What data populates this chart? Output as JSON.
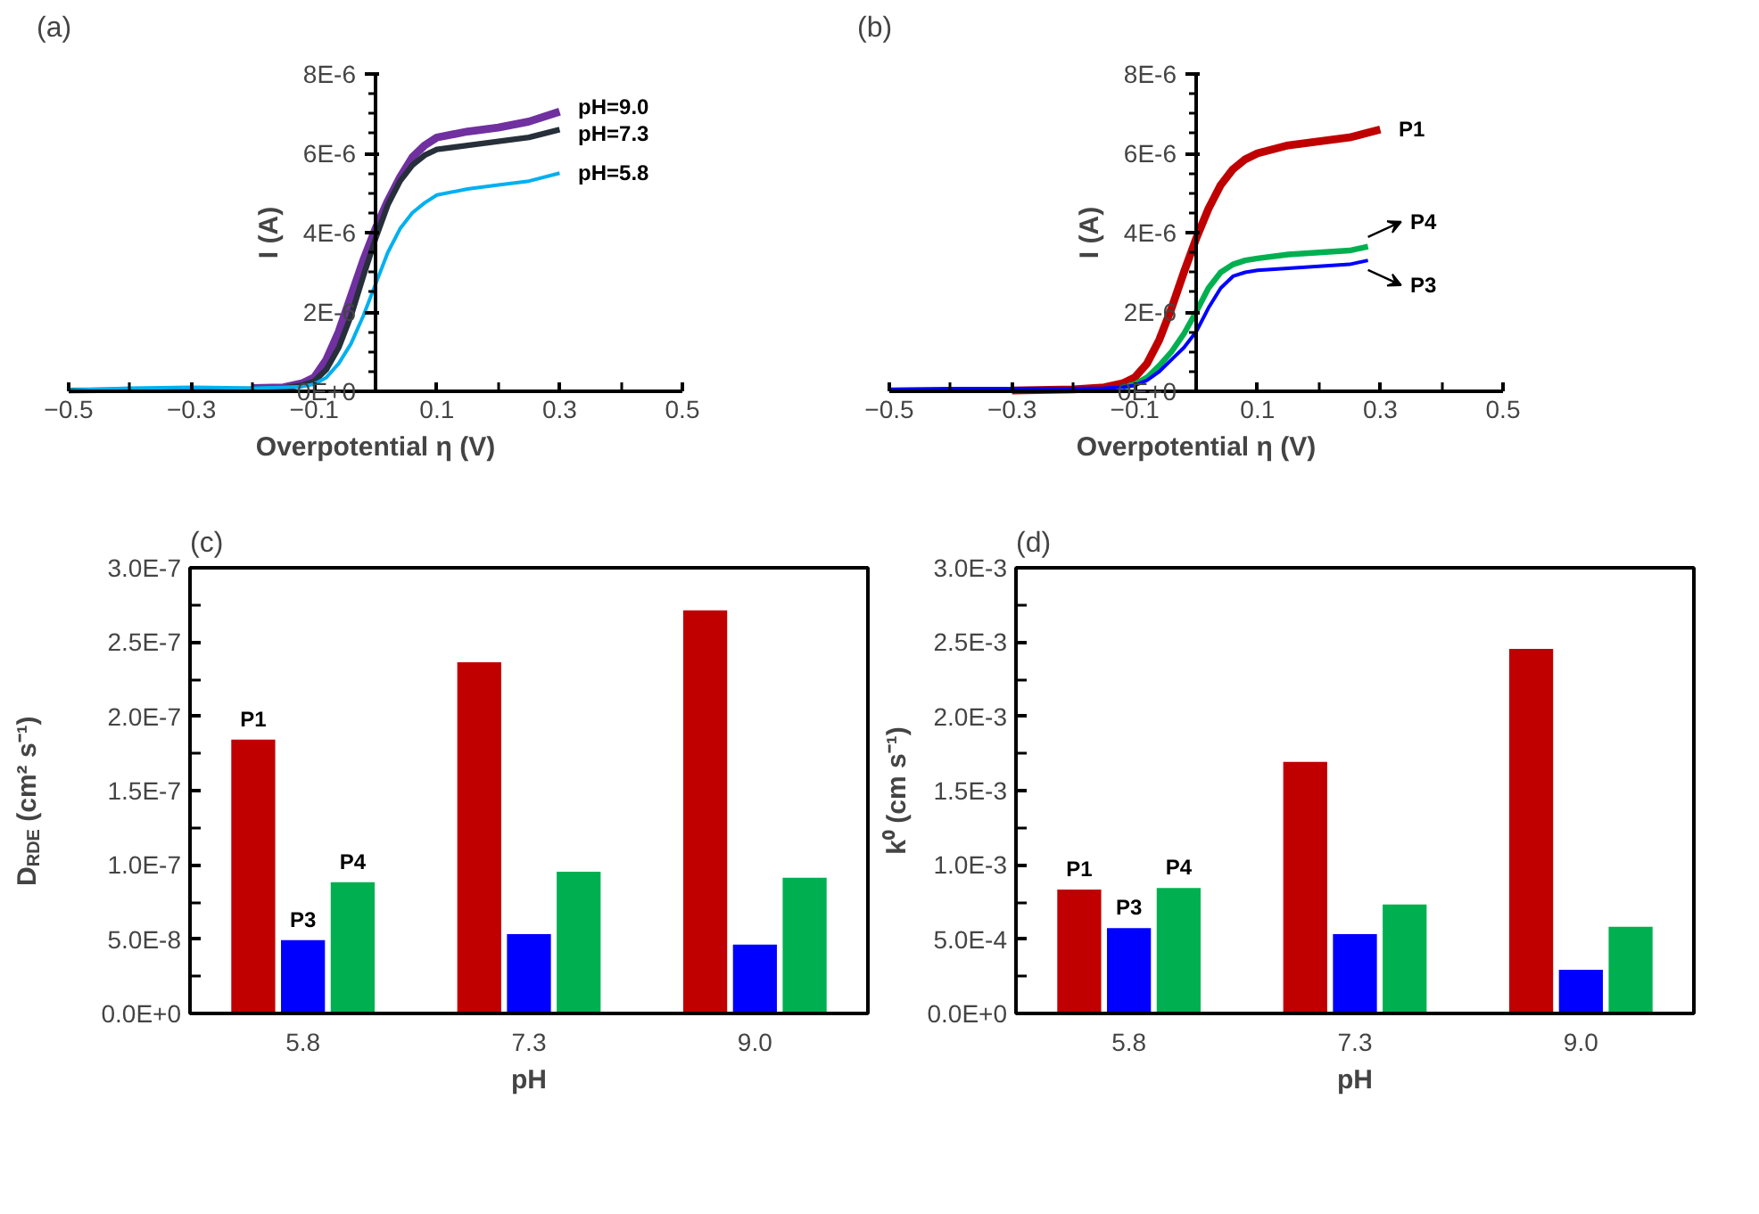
{
  "chart_data": [
    {
      "type": "line",
      "title": "(a)",
      "xlabel": "Overpotential η (V)",
      "ylabel": "I (A)",
      "xlim": [
        -0.5,
        0.5
      ],
      "xticks": [
        -0.5,
        -0.3,
        -0.1,
        0.1,
        0.3,
        0.5
      ],
      "ylim": [
        0,
        8e-06
      ],
      "yticks": [
        {
          "value": 0,
          "label": "0E+0"
        },
        {
          "value": 2e-06,
          "label": "2E-6"
        },
        {
          "value": 4e-06,
          "label": "4E-6"
        },
        {
          "value": 6e-06,
          "label": "6E-6"
        },
        {
          "value": 8e-06,
          "label": "8E-6"
        }
      ],
      "x": [
        -0.5,
        -0.4,
        -0.3,
        -0.2,
        -0.15,
        -0.12,
        -0.1,
        -0.08,
        -0.06,
        -0.04,
        -0.02,
        0,
        0.02,
        0.04,
        0.06,
        0.08,
        0.1,
        0.15,
        0.2,
        0.25,
        0.3
      ],
      "series": [
        {
          "name": "pH=9.0",
          "color": "#7030a0",
          "x": [
            -0.2,
            -0.15,
            -0.12,
            -0.1,
            -0.08,
            -0.06,
            -0.04,
            -0.02,
            0,
            0.02,
            0.04,
            0.06,
            0.08,
            0.1,
            0.15,
            0.2,
            0.25,
            0.3
          ],
          "values": [
            8e-08,
            1e-07,
            2e-07,
            3.5e-07,
            8e-07,
            1.5e-06,
            2.4e-06,
            3.3e-06,
            4.1e-06,
            4.8e-06,
            5.4e-06,
            5.9e-06,
            6.2e-06,
            6.4e-06,
            6.55e-06,
            6.65e-06,
            6.8e-06,
            7.05e-06
          ]
        },
        {
          "name": "pH=7.3",
          "color": "#262f3a",
          "values": [
            2e-08,
            3e-08,
            3e-08,
            5e-08,
            8e-08,
            1.5e-07,
            2.5e-07,
            5.5e-07,
            1.1e-06,
            1.9e-06,
            2.9e-06,
            3.85e-06,
            4.7e-06,
            5.3e-06,
            5.7e-06,
            5.95e-06,
            6.1e-06,
            6.2e-06,
            6.3e-06,
            6.4e-06,
            6.6e-06
          ]
        },
        {
          "name": "pH=5.8",
          "color": "#00b0f0",
          "values": [
            3e-08,
            8e-08,
            1e-07,
            8e-08,
            1e-07,
            1.2e-07,
            1.8e-07,
            3.5e-07,
            7e-07,
            1.2e-06,
            1.9e-06,
            2.7e-06,
            3.5e-06,
            4.1e-06,
            4.5e-06,
            4.75e-06,
            4.95e-06,
            5.1e-06,
            5.2e-06,
            5.3e-06,
            5.5e-06
          ]
        }
      ]
    },
    {
      "type": "line",
      "title": "(b)",
      "xlabel": "Overpotential η (V)",
      "ylabel": "I (A)",
      "xlim": [
        -0.5,
        0.5
      ],
      "xticks": [
        -0.5,
        -0.3,
        -0.1,
        0.1,
        0.3,
        0.5
      ],
      "ylim": [
        0,
        8e-06
      ],
      "yticks": [
        {
          "value": 0,
          "label": "0E+0"
        },
        {
          "value": 2e-06,
          "label": "2E-6"
        },
        {
          "value": 4e-06,
          "label": "4E-6"
        },
        {
          "value": 6e-06,
          "label": "6E-6"
        },
        {
          "value": 8e-06,
          "label": "8E-6"
        }
      ],
      "series": [
        {
          "name": "P1",
          "color": "#c00000",
          "x": [
            -0.3,
            -0.2,
            -0.15,
            -0.12,
            -0.1,
            -0.08,
            -0.06,
            -0.04,
            -0.02,
            0,
            0.02,
            0.04,
            0.06,
            0.08,
            0.1,
            0.15,
            0.2,
            0.25,
            0.3
          ],
          "values": [
            2e-08,
            5e-08,
            1e-07,
            2e-07,
            3.5e-07,
            7e-07,
            1.3e-06,
            2.1e-06,
            3e-06,
            3.85e-06,
            4.6e-06,
            5.2e-06,
            5.6e-06,
            5.85e-06,
            6e-06,
            6.2e-06,
            6.3e-06,
            6.4e-06,
            6.6e-06
          ]
        },
        {
          "name": "P4",
          "color": "#00b050",
          "x": [
            -0.12,
            -0.1,
            -0.08,
            -0.06,
            -0.04,
            -0.02,
            0,
            0.02,
            0.04,
            0.06,
            0.08,
            0.1,
            0.15,
            0.2,
            0.25,
            0.28
          ],
          "values": [
            1e-07,
            1.8e-07,
            3.5e-07,
            6.5e-07,
            1e-06,
            1.45e-06,
            2e-06,
            2.6e-06,
            3e-06,
            3.2e-06,
            3.3e-06,
            3.35e-06,
            3.45e-06,
            3.5e-06,
            3.55e-06,
            3.65e-06
          ]
        },
        {
          "name": "P3",
          "color": "#0000ff",
          "x": [
            -0.5,
            -0.4,
            -0.3,
            -0.2,
            -0.15,
            -0.12,
            -0.1,
            -0.08,
            -0.06,
            -0.04,
            -0.02,
            0,
            0.02,
            0.04,
            0.06,
            0.08,
            0.1,
            0.15,
            0.2,
            0.25,
            0.28
          ],
          "values": [
            5e-08,
            7e-08,
            7e-08,
            7e-08,
            8e-08,
            1e-07,
            1.5e-07,
            2.8e-07,
            5e-07,
            8e-07,
            1.1e-06,
            1.5e-06,
            2.1e-06,
            2.6e-06,
            2.9e-06,
            3e-06,
            3.05e-06,
            3.1e-06,
            3.15e-06,
            3.2e-06,
            3.3e-06
          ]
        }
      ]
    },
    {
      "type": "bar",
      "title": "(c)",
      "xlabel": "pH",
      "ylabel": "D$_{RDE}$ (cm² s⁻¹)",
      "categories": [
        "5.8",
        "7.3",
        "9.0"
      ],
      "ylim": [
        0,
        3e-07
      ],
      "yticks": [
        {
          "value": 0,
          "label": "0.0E+0"
        },
        {
          "value": 5e-08,
          "label": "5.0E-8"
        },
        {
          "value": 1e-07,
          "label": "1.0E-7"
        },
        {
          "value": 1.5e-07,
          "label": "1.5E-7"
        },
        {
          "value": 2e-07,
          "label": "2.0E-7"
        },
        {
          "value": 2.5e-07,
          "label": "2.5E-7"
        },
        {
          "value": 3e-07,
          "label": "3.0E-7"
        }
      ],
      "series": [
        {
          "name": "P1",
          "color": "#c00000",
          "values": [
            1.85e-07,
            2.37e-07,
            2.72e-07
          ]
        },
        {
          "name": "P3",
          "color": "#0000ff",
          "values": [
            5e-08,
            5.4e-08,
            4.7e-08
          ]
        },
        {
          "name": "P4",
          "color": "#00b050",
          "values": [
            8.9e-08,
            9.6e-08,
            9.2e-08
          ]
        }
      ]
    },
    {
      "type": "bar",
      "title": "(d)",
      "xlabel": "pH",
      "ylabel": "k⁰ (cm s⁻¹)",
      "categories": [
        "5.8",
        "7.3",
        "9.0"
      ],
      "ylim": [
        0,
        0.003
      ],
      "yticks": [
        {
          "value": 0,
          "label": "0.0E+0"
        },
        {
          "value": 0.0005,
          "label": "5.0E-4"
        },
        {
          "value": 0.001,
          "label": "1.0E-3"
        },
        {
          "value": 0.0015,
          "label": "1.5E-3"
        },
        {
          "value": 0.002,
          "label": "2.0E-3"
        },
        {
          "value": 0.0025,
          "label": "2.5E-3"
        },
        {
          "value": 0.003,
          "label": "3.0E-3"
        }
      ],
      "series": [
        {
          "name": "P1",
          "color": "#c00000",
          "values": [
            0.00084,
            0.0017,
            0.00246
          ]
        },
        {
          "name": "P3",
          "color": "#0000ff",
          "values": [
            0.00058,
            0.00054,
            0.0003
          ]
        },
        {
          "name": "P4",
          "color": "#00b050",
          "values": [
            0.00085,
            0.00074,
            0.00059
          ]
        }
      ]
    }
  ]
}
